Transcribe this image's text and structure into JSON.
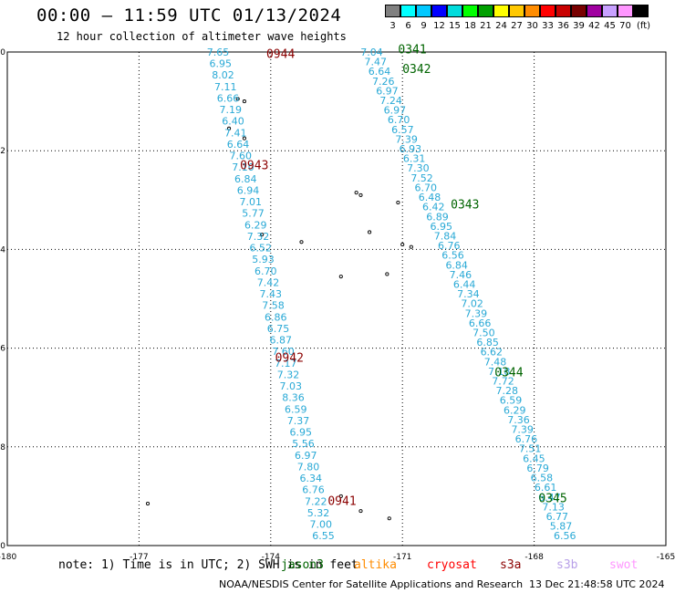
{
  "title": "00:00 – 11:59 UTC 01/13/2024",
  "subtitle": "12 hour collection of altimeter wave heights",
  "legend": {
    "levels": [
      "3",
      "6",
      "9",
      "12",
      "15",
      "18",
      "21",
      "24",
      "27",
      "30",
      "33",
      "36",
      "39",
      "42",
      "45",
      "70",
      "(ft)"
    ],
    "colors": [
      "#808080",
      "#00ffff",
      "#00c8ff",
      "#0000ff",
      "#00dcdc",
      "#00ff00",
      "#00a000",
      "#ffff00",
      "#ffc800",
      "#ff8c00",
      "#ff0000",
      "#c80000",
      "#780000",
      "#a000a0",
      "#c8a0ff",
      "#ff96ff",
      "#000000"
    ]
  },
  "axes": {
    "x_ticks": [
      "-180",
      "-177",
      "-174",
      "-171",
      "-168",
      "-165"
    ],
    "y_ticks": [
      "0",
      "-2",
      "-4",
      "-6",
      "-8",
      "-10"
    ]
  },
  "map_data": {
    "lon_range": [
      -180,
      -165
    ],
    "lat_range": [
      -10,
      0
    ],
    "tracks": [
      {
        "name": "track-west",
        "color": "#29a9d6",
        "start": [
          -175.2,
          0
        ],
        "end": [
          -172.8,
          -9.8
        ],
        "values": [
          "7.65",
          "6.95",
          "8.02",
          "7.11",
          "6.66",
          "7.19",
          "6.40",
          "7.41",
          "6.64",
          "7.60",
          "7.10",
          "6.84",
          "6.94",
          "7.01",
          "5.77",
          "6.29",
          "7.32",
          "6.52",
          "5.93",
          "6.70",
          "7.42",
          "7.43",
          "7.58",
          "6.86",
          "6.75",
          "6.87",
          "7.60",
          "7.17",
          "7.32",
          "7.03",
          "8.36",
          "6.59",
          "7.37",
          "6.95",
          "5.56",
          "6.97",
          "7.80",
          "6.34",
          "6.76",
          "7.22",
          "5.32",
          "7.00",
          "6.55"
        ]
      },
      {
        "name": "track-east",
        "color": "#29a9d6",
        "start": [
          -171.7,
          0
        ],
        "end": [
          -167.3,
          -9.8
        ],
        "values": [
          "7.04",
          "7.47",
          "6.64",
          "7.26",
          "6.97",
          "7.24",
          "6.97",
          "6.70",
          "6.57",
          "7.39",
          "6.93",
          "6.31",
          "7.30",
          "7.52",
          "6.70",
          "6.48",
          "6.42",
          "6.89",
          "6.95",
          "7.84",
          "6.76",
          "6.56",
          "6.84",
          "7.46",
          "6.44",
          "7.34",
          "7.02",
          "7.39",
          "6.66",
          "7.50",
          "6.85",
          "6.62",
          "7.48",
          "7.18",
          "7.72",
          "7.28",
          "6.59",
          "6.29",
          "7.36",
          "7.39",
          "6.76",
          "7.51",
          "6.45",
          "6.79",
          "6.58",
          "6.61",
          "6.47",
          "7.13",
          "6.77",
          "5.87",
          "6.56"
        ]
      }
    ],
    "time_labels": [
      {
        "text": "0944",
        "color": "#8b0000",
        "lon": -174.1,
        "lat": -0.05
      },
      {
        "text": "0943",
        "color": "#8b0000",
        "lon": -174.7,
        "lat": -2.3
      },
      {
        "text": "0942",
        "color": "#8b0000",
        "lon": -173.9,
        "lat": -6.2
      },
      {
        "text": "0941",
        "color": "#8b0000",
        "lon": -172.7,
        "lat": -9.1
      },
      {
        "text": "0341",
        "color": "#006400",
        "lon": -171.1,
        "lat": 0.05
      },
      {
        "text": "0342",
        "color": "#006400",
        "lon": -171.0,
        "lat": -0.35
      },
      {
        "text": "0343",
        "color": "#006400",
        "lon": -169.9,
        "lat": -3.1
      },
      {
        "text": "0344",
        "color": "#006400",
        "lon": -168.9,
        "lat": -6.5
      },
      {
        "text": "0345",
        "color": "#006400",
        "lon": -167.9,
        "lat": -9.05
      }
    ],
    "islands": [
      [
        -174.75,
        -0.95
      ],
      [
        -174.6,
        -1.0
      ],
      [
        -174.95,
        -1.55
      ],
      [
        -174.6,
        -1.75
      ],
      [
        -172.05,
        -2.85
      ],
      [
        -171.95,
        -2.9
      ],
      [
        -171.1,
        -3.05
      ],
      [
        -171.75,
        -3.65
      ],
      [
        -171.0,
        -3.9
      ],
      [
        -170.8,
        -3.95
      ],
      [
        -173.3,
        -3.85
      ],
      [
        -174.2,
        -3.7
      ],
      [
        -172.4,
        -4.55
      ],
      [
        -171.35,
        -4.5
      ],
      [
        -172.4,
        -9.0
      ],
      [
        -171.95,
        -9.3
      ],
      [
        -171.3,
        -9.45
      ],
      [
        -176.8,
        -9.15
      ]
    ]
  },
  "note": "note: 1) Time is in UTC; 2) SWH is in feet",
  "satellites": [
    {
      "name": "jason3",
      "color": "#006400"
    },
    {
      "name": "altika",
      "color": "#ff8c00"
    },
    {
      "name": "cryosat",
      "color": "#ff0000"
    },
    {
      "name": "s3a",
      "color": "#8b0000"
    },
    {
      "name": "s3b",
      "color": "#b8a0e8"
    },
    {
      "name": "swot",
      "color": "#ff96ff"
    }
  ],
  "footer": "NOAA/NESDIS Center for Satellite Applications and Research",
  "timestamp": "13 Dec 21:48:58 UTC 2024"
}
